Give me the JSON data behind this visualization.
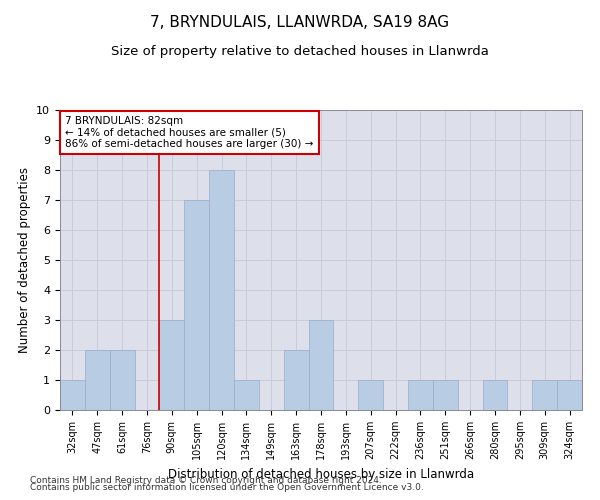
{
  "title1": "7, BRYNDULAIS, LLANWRDA, SA19 8AG",
  "title2": "Size of property relative to detached houses in Llanwrda",
  "xlabel": "Distribution of detached houses by size in Llanwrda",
  "ylabel": "Number of detached properties",
  "categories": [
    "32sqm",
    "47sqm",
    "61sqm",
    "76sqm",
    "90sqm",
    "105sqm",
    "120sqm",
    "134sqm",
    "149sqm",
    "163sqm",
    "178sqm",
    "193sqm",
    "207sqm",
    "222sqm",
    "236sqm",
    "251sqm",
    "266sqm",
    "280sqm",
    "295sqm",
    "309sqm",
    "324sqm"
  ],
  "values": [
    1,
    2,
    2,
    0,
    3,
    7,
    8,
    1,
    0,
    2,
    3,
    0,
    1,
    0,
    1,
    1,
    0,
    1,
    0,
    1,
    1
  ],
  "bar_color": "#b8cce4",
  "bar_edgecolor": "#9aaccb",
  "grid_color": "#c8ccd8",
  "bg_color": "#dde0ea",
  "annotation_text": "7 BRYNDULAIS: 82sqm\n← 14% of detached houses are smaller (5)\n86% of semi-detached houses are larger (30) →",
  "annotation_box_facecolor": "#ffffff",
  "annotation_box_edgecolor": "#cc0000",
  "vline_x": 3.5,
  "vline_color": "#cc0000",
  "ylim": [
    0,
    10
  ],
  "yticks": [
    0,
    1,
    2,
    3,
    4,
    5,
    6,
    7,
    8,
    9,
    10
  ],
  "footer1": "Contains HM Land Registry data © Crown copyright and database right 2024.",
  "footer2": "Contains public sector information licensed under the Open Government Licence v3.0.",
  "title1_fontsize": 11,
  "title2_fontsize": 9.5,
  "annot_fontsize": 7.5,
  "tick_fontsize": 7,
  "ylabel_fontsize": 8.5,
  "xlabel_fontsize": 8.5,
  "footer_fontsize": 6.5
}
